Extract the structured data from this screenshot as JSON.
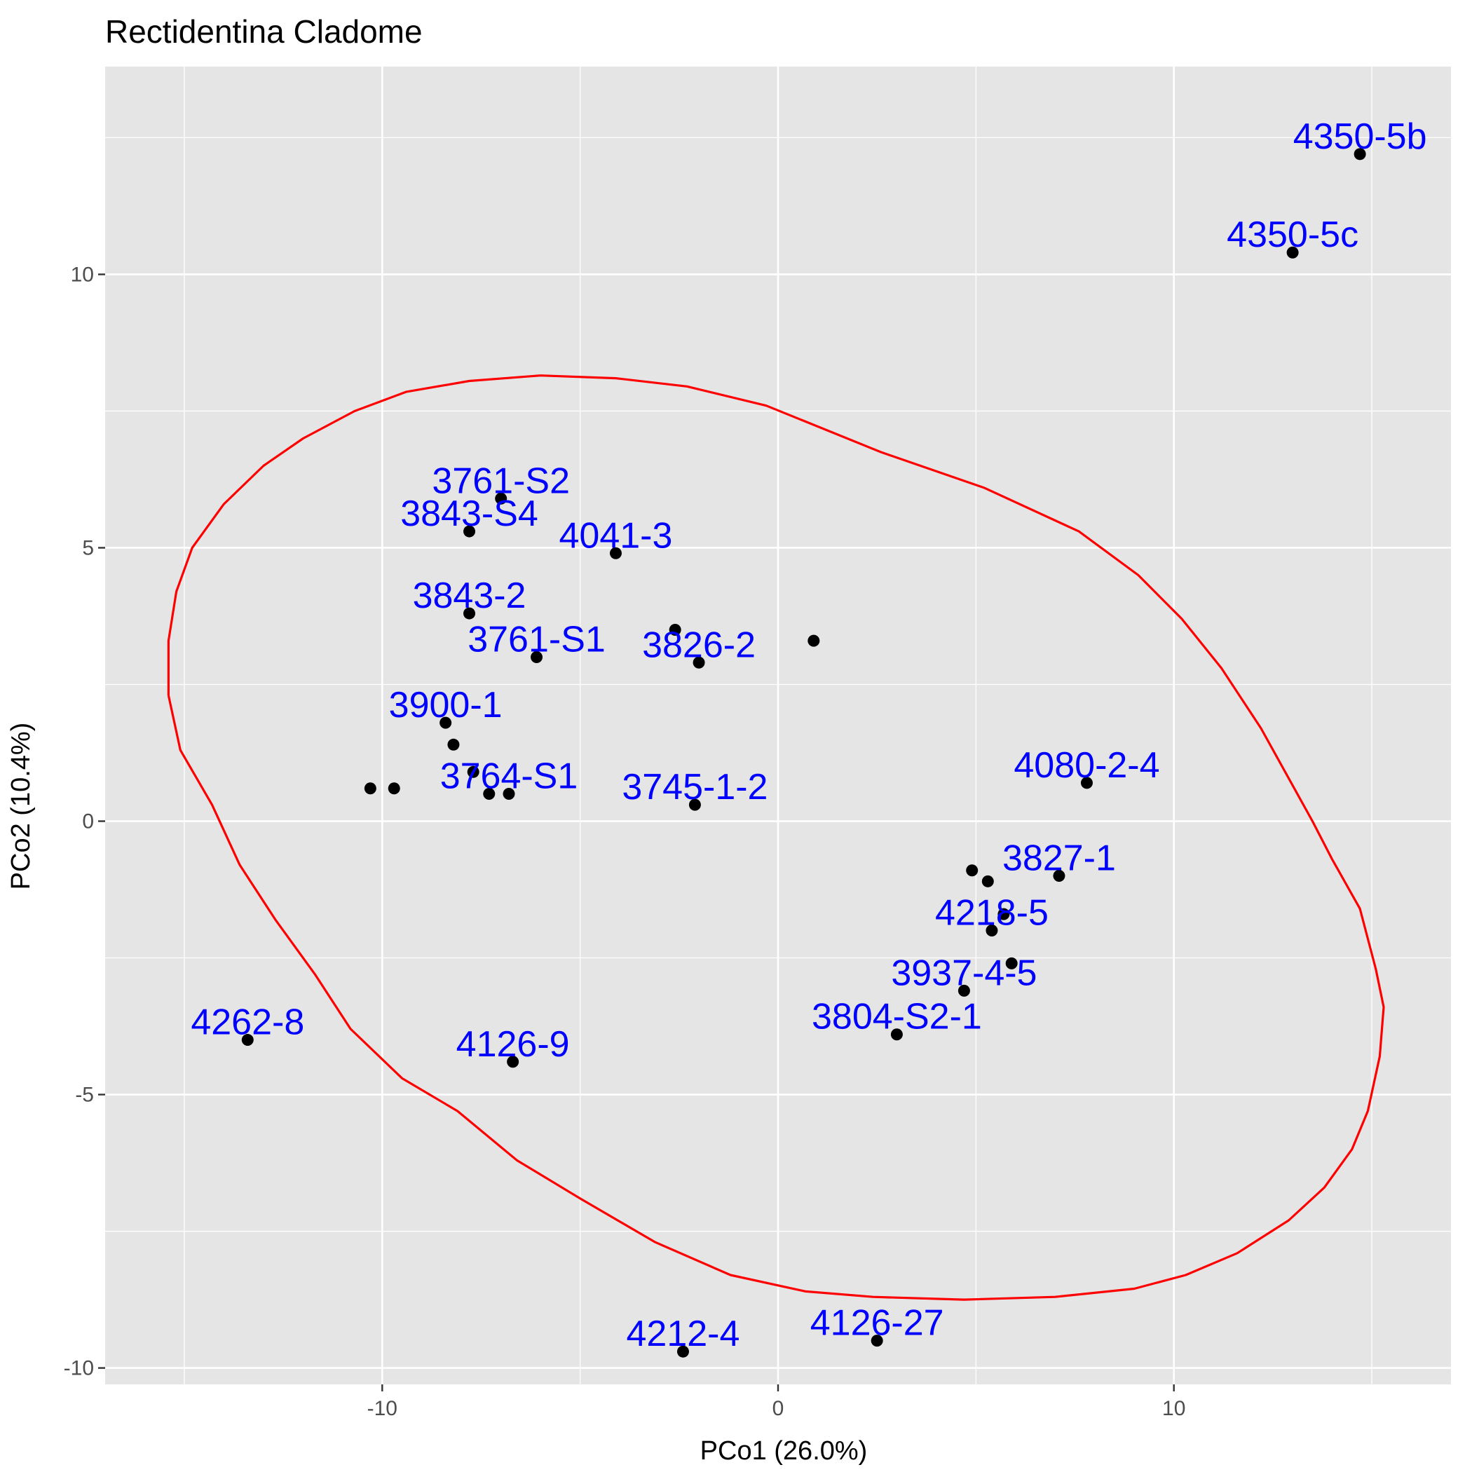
{
  "chart_data": {
    "type": "scatter",
    "title": "Rectidentina Cladome",
    "xlabel": "PCo1 (26.0%)",
    "ylabel": "PCo2 (10.4%)",
    "xlim": [
      -17,
      17
    ],
    "ylim": [
      -10.3,
      13.8
    ],
    "x_ticks": [
      -10,
      0,
      10
    ],
    "x_tick_labels": [
      "-10",
      "0",
      "10"
    ],
    "y_ticks": [
      -10,
      -5,
      0,
      5,
      10
    ],
    "y_tick_labels": [
      "-10",
      "-5",
      "0",
      "5",
      "10"
    ],
    "grid": true,
    "panel_background": "#e5e5e5",
    "grid_color": "#ffffff",
    "point_color": "#000000",
    "label_color": "#0000ff",
    "ellipse_color": "#ff0000",
    "points": [
      {
        "x": 14.7,
        "y": 12.2,
        "label": "4350-5b"
      },
      {
        "x": 13.0,
        "y": 10.4,
        "label": "4350-5c"
      },
      {
        "x": -7.0,
        "y": 5.9,
        "label": "3761-S2"
      },
      {
        "x": -7.8,
        "y": 5.3,
        "label": "3843-S4"
      },
      {
        "x": -4.1,
        "y": 4.9,
        "label": "4041-3"
      },
      {
        "x": -7.8,
        "y": 3.8,
        "label": "3843-2"
      },
      {
        "x": -6.1,
        "y": 3.0,
        "label": "3761-S1"
      },
      {
        "x": -2.6,
        "y": 3.5,
        "label": ""
      },
      {
        "x": -2.0,
        "y": 2.9,
        "label": "3826-2"
      },
      {
        "x": 0.9,
        "y": 3.3,
        "label": ""
      },
      {
        "x": -8.4,
        "y": 1.8,
        "label": "3900-1"
      },
      {
        "x": -8.2,
        "y": 1.4,
        "label": ""
      },
      {
        "x": -10.3,
        "y": 0.6,
        "label": ""
      },
      {
        "x": -9.7,
        "y": 0.6,
        "label": ""
      },
      {
        "x": -7.7,
        "y": 0.9,
        "label": ""
      },
      {
        "x": -7.3,
        "y": 0.5,
        "label": ""
      },
      {
        "x": -6.8,
        "y": 0.5,
        "label": "3764-S1"
      },
      {
        "x": -2.1,
        "y": 0.3,
        "label": "3745-1-2"
      },
      {
        "x": 7.8,
        "y": 0.7,
        "label": "4080-2-4"
      },
      {
        "x": 4.9,
        "y": -0.9,
        "label": ""
      },
      {
        "x": 5.3,
        "y": -1.1,
        "label": ""
      },
      {
        "x": 7.1,
        "y": -1.0,
        "label": "3827-1"
      },
      {
        "x": 5.7,
        "y": -1.7,
        "label": ""
      },
      {
        "x": 5.4,
        "y": -2.0,
        "label": "4218-5"
      },
      {
        "x": 5.9,
        "y": -2.6,
        "label": ""
      },
      {
        "x": 4.7,
        "y": -3.1,
        "label": "3937-4-5"
      },
      {
        "x": 3.0,
        "y": -3.9,
        "label": "3804-S2-1"
      },
      {
        "x": -13.4,
        "y": -4.0,
        "label": "4262-8"
      },
      {
        "x": -6.7,
        "y": -4.4,
        "label": "4126-9"
      },
      {
        "x": 2.5,
        "y": -9.5,
        "label": "4126-27"
      },
      {
        "x": -2.4,
        "y": -9.7,
        "label": "4212-4"
      }
    ],
    "ellipse": [
      [
        -15.4,
        2.3
      ],
      [
        -15.4,
        3.3
      ],
      [
        -15.2,
        4.2
      ],
      [
        -14.8,
        5.0
      ],
      [
        -14.0,
        5.8
      ],
      [
        -13.0,
        6.5
      ],
      [
        -12.0,
        7.0
      ],
      [
        -10.7,
        7.5
      ],
      [
        -9.4,
        7.85
      ],
      [
        -7.8,
        8.05
      ],
      [
        -6.0,
        8.15
      ],
      [
        -4.1,
        8.1
      ],
      [
        -2.3,
        7.95
      ],
      [
        -0.3,
        7.6
      ],
      [
        2.6,
        6.75
      ],
      [
        5.2,
        6.1
      ],
      [
        7.6,
        5.3
      ],
      [
        9.1,
        4.5
      ],
      [
        10.2,
        3.7
      ],
      [
        11.2,
        2.8
      ],
      [
        12.2,
        1.7
      ],
      [
        13.5,
        0.0
      ],
      [
        14.0,
        -0.7
      ],
      [
        14.7,
        -1.6
      ],
      [
        15.1,
        -2.7
      ],
      [
        15.3,
        -3.4
      ],
      [
        15.2,
        -4.3
      ],
      [
        14.9,
        -5.3
      ],
      [
        14.5,
        -6.0
      ],
      [
        13.8,
        -6.7
      ],
      [
        12.9,
        -7.3
      ],
      [
        11.6,
        -7.9
      ],
      [
        10.3,
        -8.3
      ],
      [
        9.0,
        -8.55
      ],
      [
        7.0,
        -8.7
      ],
      [
        4.7,
        -8.75
      ],
      [
        2.4,
        -8.7
      ],
      [
        0.7,
        -8.6
      ],
      [
        -1.2,
        -8.3
      ],
      [
        -3.1,
        -7.7
      ],
      [
        -5.0,
        -6.9
      ],
      [
        -6.6,
        -6.2
      ],
      [
        -8.1,
        -5.3
      ],
      [
        -9.5,
        -4.7
      ],
      [
        -10.8,
        -3.8
      ],
      [
        -11.7,
        -2.8
      ],
      [
        -12.7,
        -1.8
      ],
      [
        -13.6,
        -0.8
      ],
      [
        -14.3,
        0.3
      ],
      [
        -15.1,
        1.3
      ],
      [
        -15.4,
        2.3
      ]
    ]
  }
}
